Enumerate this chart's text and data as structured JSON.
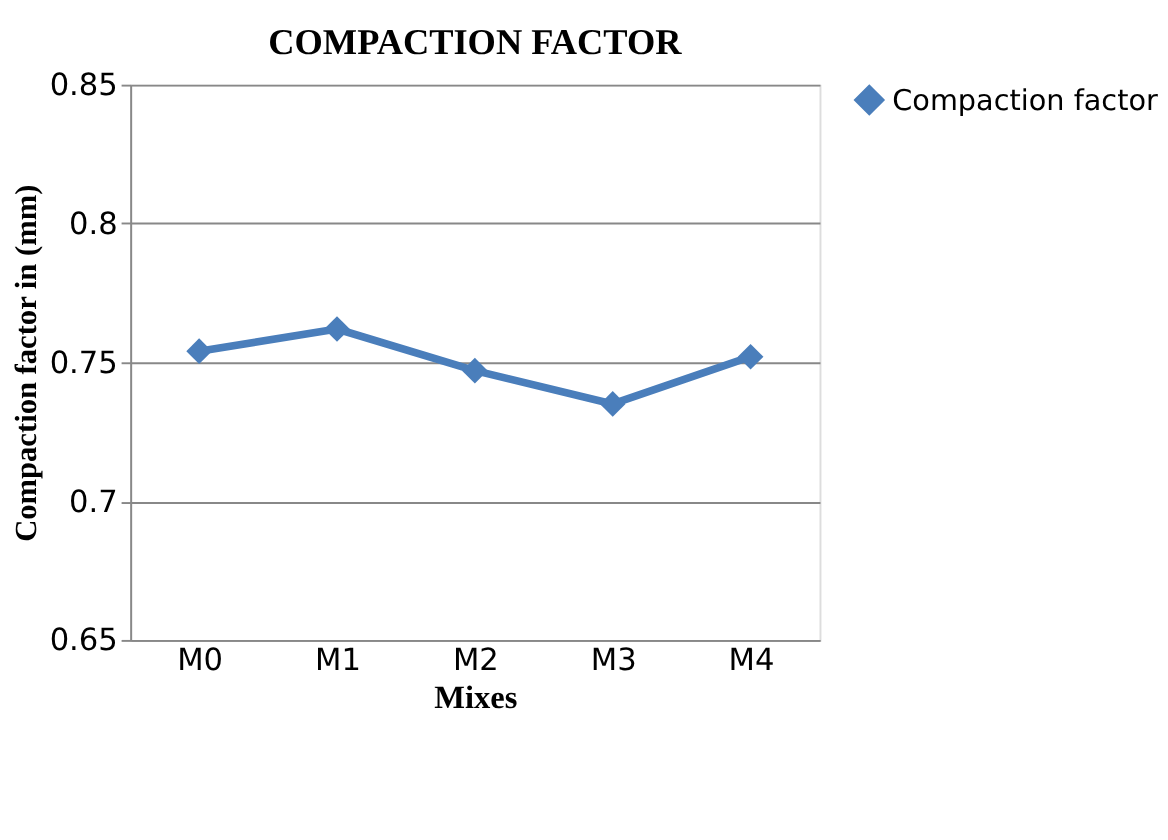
{
  "chart_data": {
    "type": "line",
    "title": "COMPACTION FACTOR",
    "xlabel": "Mixes",
    "ylabel": "Compaction factor in (mm)",
    "categories": [
      "M0",
      "M1",
      "M2",
      "M3",
      "M4"
    ],
    "series": [
      {
        "name": "Compaction factor",
        "color": "#4a7ebb",
        "values": [
          0.754,
          0.762,
          0.747,
          0.735,
          0.752
        ]
      }
    ],
    "ylim": [
      0.65,
      0.85
    ],
    "yticks": [
      0.65,
      0.7,
      0.75,
      0.8,
      0.85
    ],
    "grid": "y",
    "legend": "right",
    "marker": "diamond",
    "line_style": "solid"
  }
}
